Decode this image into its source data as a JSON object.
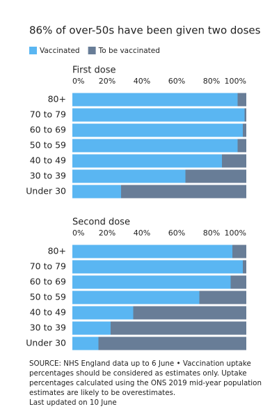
{
  "title": "86% of over-50s have been given two doses",
  "source": [
    "SOURCE: NHS England data up to 6 June • Vaccination uptake",
    "percentages should be considered as estimates only. Uptake",
    "percentages calculated using the ONS 2019 mid-year population",
    "estimates are likely to be overestimates.",
    "Last updated on 10 June"
  ],
  "chart_data": [
    {
      "type": "stacked-bar-horizontal",
      "subtitle": "First dose",
      "categories": [
        "80+",
        "70 to 79",
        "60 to 69",
        "50 to 59",
        "40 to 49",
        "30 to 39",
        "Under 30"
      ],
      "series": [
        {
          "name": "Vaccinated",
          "color": "#5ab6f2",
          "values": [
            95,
            99,
            98,
            95,
            86,
            65,
            28
          ]
        },
        {
          "name": "To be vaccinated",
          "color": "#687d97",
          "values": [
            5,
            1,
            2,
            5,
            14,
            35,
            72
          ]
        }
      ],
      "xlim": [
        0,
        100
      ],
      "xticks": [
        {
          "value": 0,
          "label": "0%"
        },
        {
          "value": 20,
          "label": "20%"
        },
        {
          "value": 40,
          "label": "40%"
        },
        {
          "value": 60,
          "label": "60%"
        },
        {
          "value": 80,
          "label": "80%"
        },
        {
          "value": 100,
          "label": "100%"
        }
      ]
    },
    {
      "type": "stacked-bar-horizontal",
      "subtitle": "Second dose",
      "categories": [
        "80+",
        "70 to 79",
        "60 to 69",
        "50 to 59",
        "40 to 49",
        "30 to 39",
        "Under 30"
      ],
      "series": [
        {
          "color": "#5ab6f2",
          "values": [
            92,
            98,
            91,
            73,
            35,
            22,
            15
          ]
        },
        {
          "color": "#687d97",
          "values": [
            8,
            2,
            9,
            27,
            65,
            78,
            85
          ]
        }
      ],
      "xlim": [
        0,
        100
      ],
      "xticks": [
        {
          "value": 0,
          "label": "0%"
        },
        {
          "value": 20,
          "label": "20%"
        },
        {
          "value": 40,
          "label": "40%"
        },
        {
          "value": 60,
          "label": "60%"
        },
        {
          "value": 80,
          "label": "80%"
        },
        {
          "value": 100,
          "label": "100%"
        }
      ]
    }
  ]
}
